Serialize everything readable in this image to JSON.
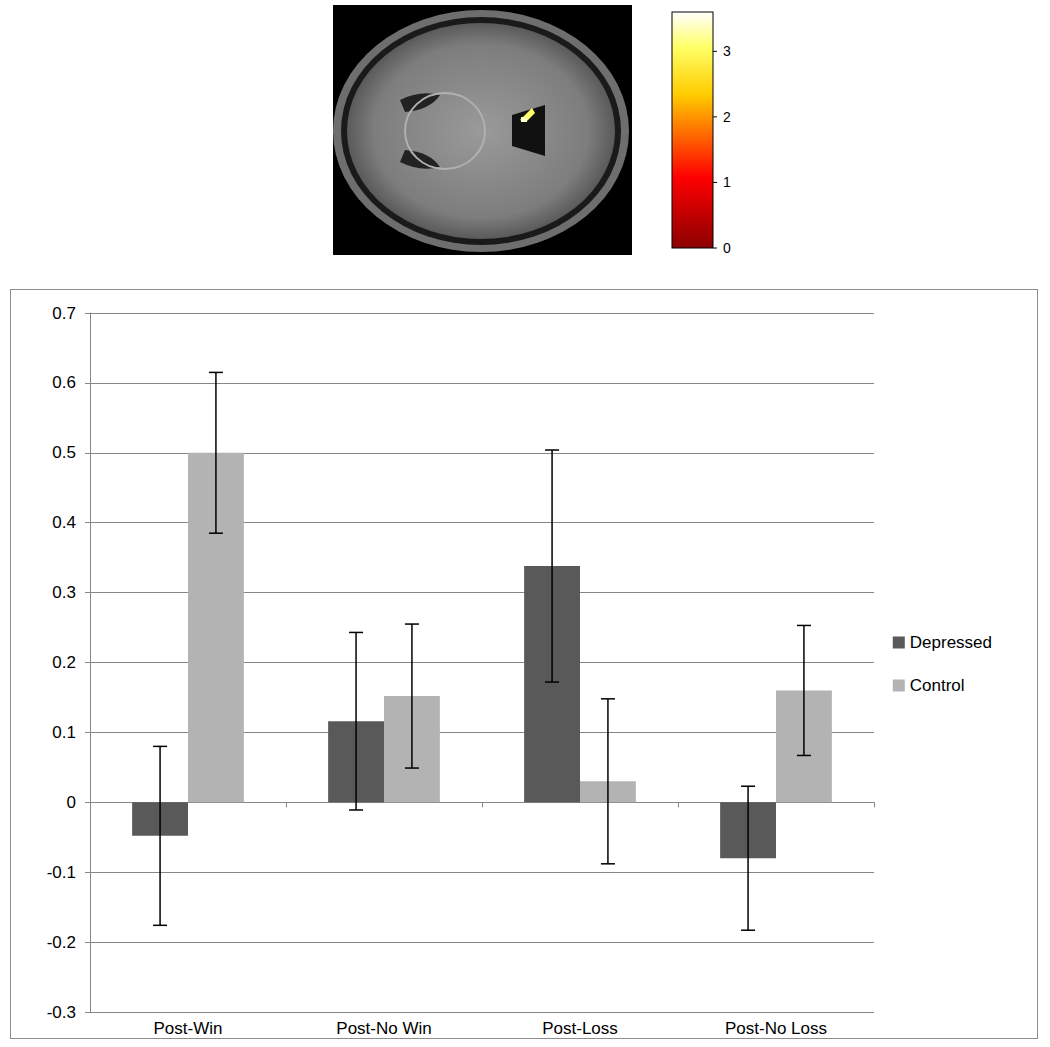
{
  "chart_data": {
    "type": "bar",
    "categories": [
      "Post-Win",
      "Post-No Win",
      "Post-Loss",
      "Post-No Loss"
    ],
    "series": [
      {
        "name": "Depressed",
        "color": "#595959",
        "values": [
          -0.048,
          0.116,
          0.338,
          -0.08
        ],
        "errors": [
          0.128,
          0.127,
          0.166,
          0.103
        ]
      },
      {
        "name": "Control",
        "color": "#b3b3b3",
        "values": [
          0.5,
          0.152,
          0.03,
          0.16
        ],
        "errors": [
          0.115,
          0.103,
          0.118,
          0.093
        ]
      }
    ],
    "ylim": [
      -0.3,
      0.7
    ],
    "yticks": [
      -0.3,
      -0.2,
      -0.1,
      0,
      0.1,
      0.2,
      0.3,
      0.4,
      0.5,
      0.6,
      0.7
    ],
    "grid": true,
    "legend": "right",
    "colorbar": {
      "range": [
        0,
        3.6
      ],
      "ticks": [
        0,
        1,
        2,
        3
      ]
    }
  }
}
